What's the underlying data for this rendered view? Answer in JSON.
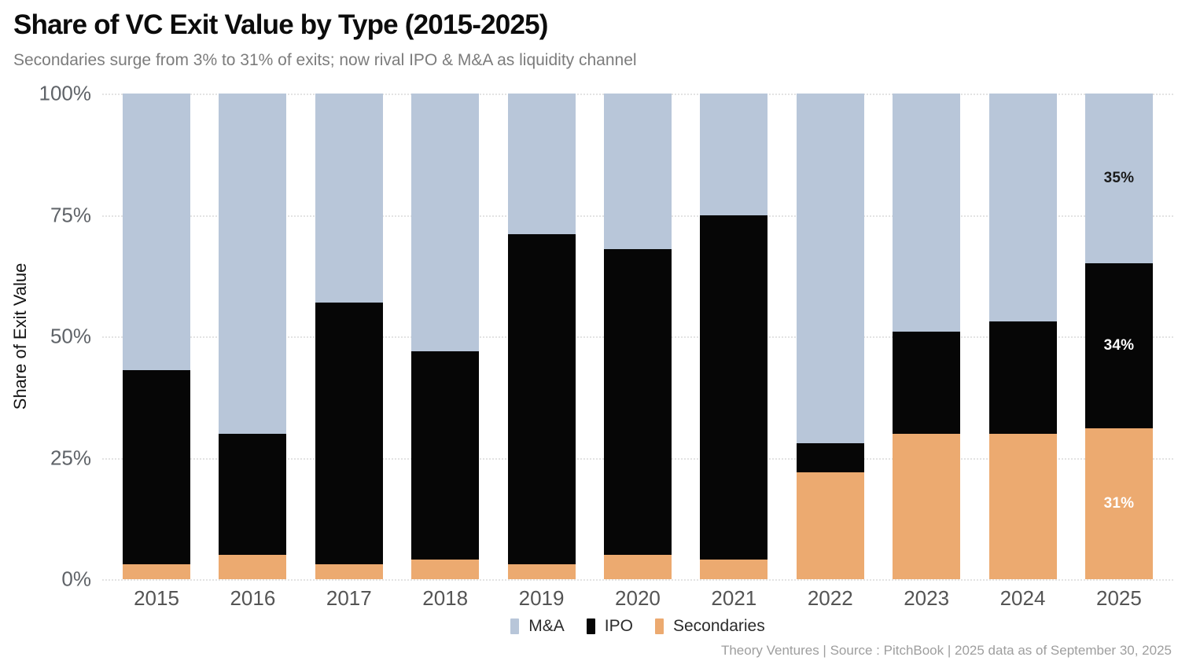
{
  "header": {
    "title": "Share of VC Exit Value by Type (2015-2025)",
    "subtitle": "Secondaries surge from 3% to 31% of exits; now rival IPO & M&A as liquidity channel"
  },
  "footer": {
    "caption": "Theory Ventures | Source : PitchBook | 2025 data as of September 30, 2025"
  },
  "colors": {
    "mna": "#b8c6d9",
    "ipo": "#060606",
    "secondaries": "#ecaa70",
    "grid": "#e3e3e3",
    "tick_text": "#5f6368",
    "subtitle_text": "#7c7c7c",
    "footer_text": "#9e9e9e"
  },
  "chart_data": {
    "type": "bar",
    "stacked": true,
    "normalized_percent": true,
    "title": "Share of VC Exit Value by Type (2015-2025)",
    "subtitle": "Secondaries surge from 3% to 31% of exits; now rival IPO & M&A as liquidity channel",
    "categories": [
      "2015",
      "2016",
      "2017",
      "2018",
      "2019",
      "2020",
      "2021",
      "2022",
      "2023",
      "2024",
      "2025"
    ],
    "series": [
      {
        "name": "M&A",
        "color": "#b8c6d9",
        "label_color": "#1a1a1a",
        "values": [
          57,
          70,
          43,
          53,
          29,
          32,
          25,
          72,
          49,
          47,
          35
        ]
      },
      {
        "name": "IPO",
        "color": "#060606",
        "label_color": "#ffffff",
        "values": [
          40,
          25,
          54,
          43,
          68,
          63,
          71,
          6,
          21,
          23,
          34
        ]
      },
      {
        "name": "Secondaries",
        "color": "#ecaa70",
        "label_color": "#ffffff",
        "values": [
          3,
          5,
          3,
          4,
          3,
          5,
          4,
          22,
          30,
          30,
          31
        ]
      }
    ],
    "stack_order_bottom_to_top": [
      "Secondaries",
      "IPO",
      "M&A"
    ],
    "bar_value_labels": {
      "2025": {
        "M&A": "35%",
        "IPO": "34%",
        "Secondaries": "31%"
      }
    },
    "xlabel": "",
    "ylabel": "Share of Exit Value",
    "ylim": [
      0,
      100
    ],
    "yticks": [
      {
        "value": 0,
        "label": "0%"
      },
      {
        "value": 25,
        "label": "25%"
      },
      {
        "value": 50,
        "label": "50%"
      },
      {
        "value": 75,
        "label": "75%"
      },
      {
        "value": 100,
        "label": "100%"
      }
    ],
    "grid": "horizontal-dotted",
    "legend_position": "bottom-center"
  },
  "legend": {
    "items": [
      {
        "label": "M&A",
        "color": "#b8c6d9"
      },
      {
        "label": "IPO",
        "color": "#060606"
      },
      {
        "label": "Secondaries",
        "color": "#ecaa70"
      }
    ]
  }
}
